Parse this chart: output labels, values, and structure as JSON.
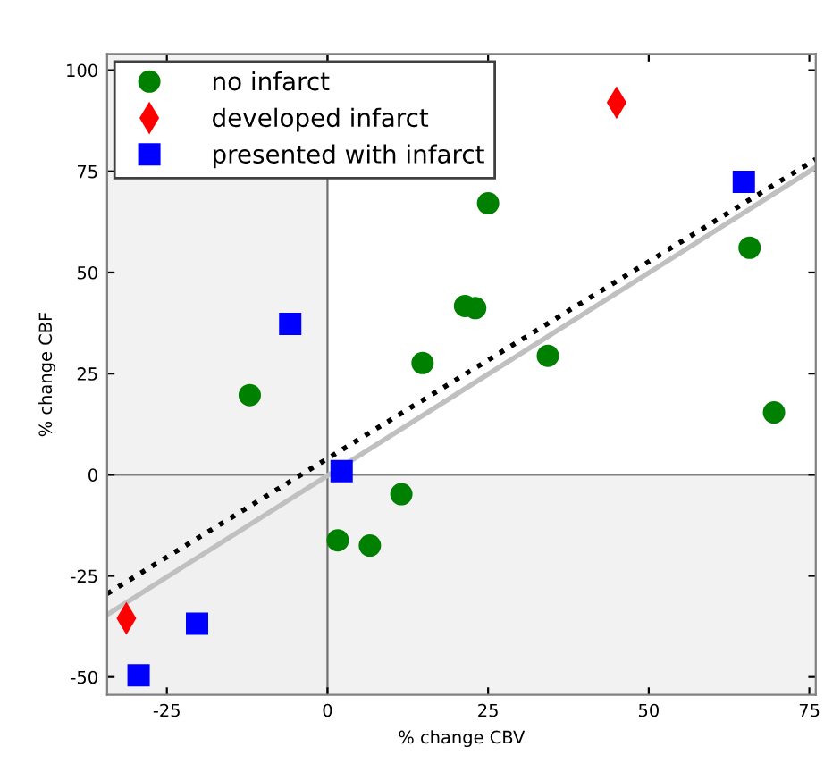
{
  "chart_data": {
    "type": "scatter",
    "xlabel": "% change CBV",
    "ylabel": "% change CBF",
    "xlim": [
      -34.3,
      76
    ],
    "ylim": [
      -54.4,
      104
    ],
    "xticks": [
      -25,
      0,
      25,
      50,
      75
    ],
    "yticks": [
      -50,
      -25,
      0,
      25,
      50,
      75,
      100
    ],
    "grid": false,
    "legend": "top left",
    "series": [
      {
        "name": "no infarct",
        "marker": "circle",
        "color": "#008000",
        "x": [
          -12.1,
          14.8,
          25,
          21.4,
          23,
          34.3,
          65.7,
          69.5,
          11.5,
          1.6,
          6.6
        ],
        "values": [
          19.7,
          27.6,
          67.1,
          41.7,
          41.2,
          29.4,
          56.1,
          15.4,
          -4.8,
          -16.2,
          -17.5
        ]
      },
      {
        "name": "developed infarct",
        "marker": "diamond",
        "color": "#ff0000",
        "x": [
          45,
          -31.3
        ],
        "values": [
          92,
          -35.5
        ]
      },
      {
        "name": "presented with infarct",
        "marker": "square",
        "color": "#0000ff",
        "x": [
          64.8,
          -5.8,
          2.2,
          -20.3,
          -29.4
        ],
        "values": [
          72.4,
          37.3,
          0.9,
          -36.8,
          -49.6
        ]
      },
      {
        "type": "line",
        "line_style": "solid",
        "color": "#c0c0c0",
        "x": [
          -34.3,
          76
        ],
        "values": [
          -34.6,
          76
        ]
      },
      {
        "type": "line",
        "line_style": "dotted",
        "color": "#000000",
        "x": [
          -34.3,
          76
        ],
        "values": [
          -29.4,
          78
        ]
      }
    ],
    "bands": [
      {
        "axis": "x",
        "from": -34.3,
        "to": 0,
        "color": "#f0f0f0"
      },
      {
        "axis": "y",
        "from": -54.4,
        "to": 0,
        "color": "#f0f0f0"
      }
    ],
    "ref_lines": [
      {
        "axis": "x",
        "value": 0,
        "color": "#707070"
      },
      {
        "axis": "y",
        "value": 0,
        "color": "#808080"
      }
    ]
  }
}
